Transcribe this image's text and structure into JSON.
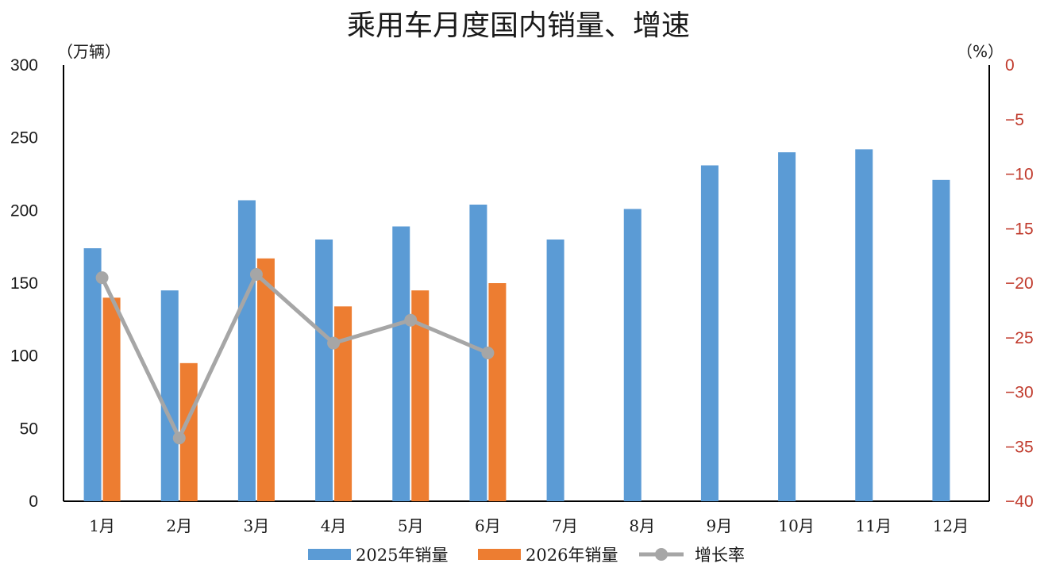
{
  "chart_data": {
    "type": "bar",
    "title": "乘用车月度国内销量、增速",
    "y_left_unit": "（万辆）",
    "y_right_unit": "（%）",
    "categories": [
      "1月",
      "2月",
      "3月",
      "4月",
      "5月",
      "6月",
      "7月",
      "8月",
      "9月",
      "10月",
      "11月",
      "12月"
    ],
    "y_left_range": [
      0,
      300
    ],
    "y_left_ticks": [
      "0",
      "50",
      "100",
      "150",
      "200",
      "250",
      "300"
    ],
    "y_right_range": [
      -40,
      0
    ],
    "y_right_ticks": [
      "0",
      "-5",
      "-10",
      "-15",
      "-20",
      "-25",
      "-30",
      "-35",
      "-40"
    ],
    "series": [
      {
        "name": "2025年销量",
        "kind": "bar",
        "axis": "left",
        "color": "#5b9bd5",
        "values": [
          174,
          145,
          207,
          180,
          189,
          204,
          180,
          201,
          231,
          240,
          242,
          221
        ]
      },
      {
        "name": "2026年销量",
        "kind": "bar",
        "axis": "left",
        "color": "#ed7d31",
        "values": [
          140,
          95,
          167,
          134,
          145,
          150,
          null,
          null,
          null,
          null,
          null,
          null
        ]
      },
      {
        "name": "增长率",
        "kind": "line",
        "axis": "right",
        "color": "#a6a6a6",
        "values": [
          -19.5,
          -34.2,
          -19.2,
          -25.5,
          -23.4,
          -26.4,
          null,
          null,
          null,
          null,
          null,
          null
        ]
      }
    ],
    "grid": false,
    "legend_position": "bottom"
  }
}
